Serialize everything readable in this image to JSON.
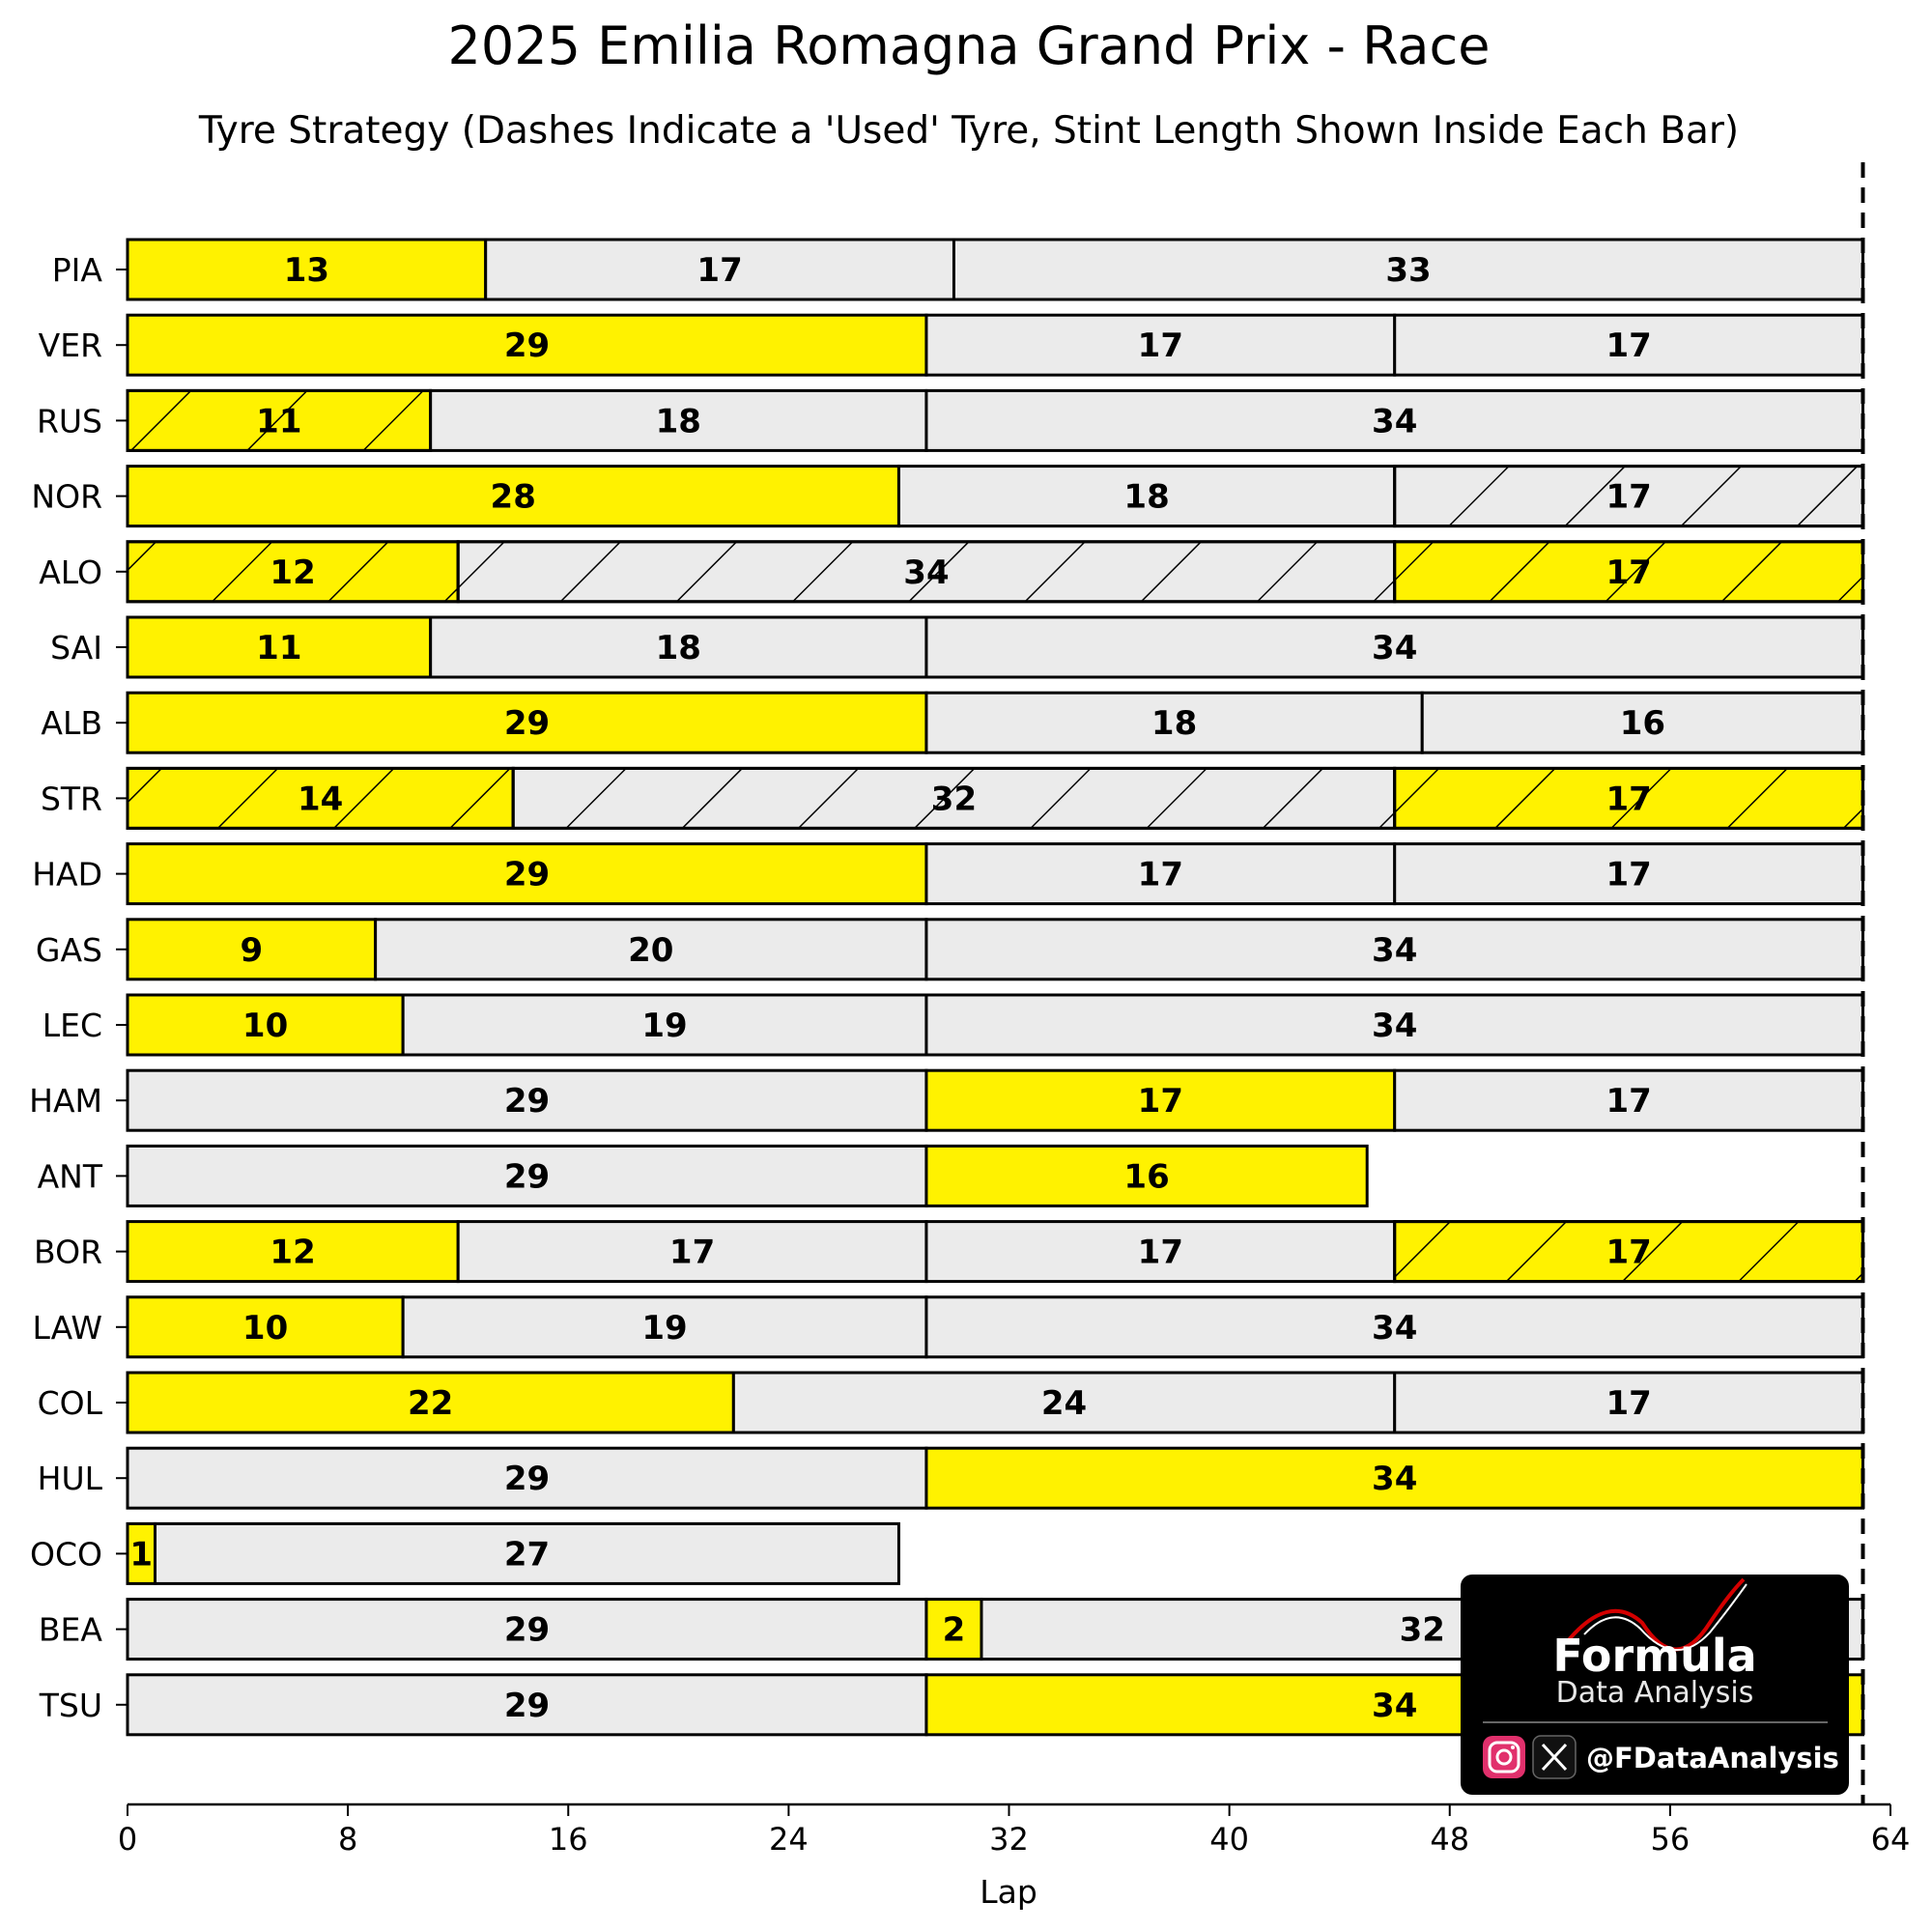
{
  "chart_data": {
    "type": "bar",
    "orientation": "horizontal-stacked",
    "title": "2025 Emilia Romagna Grand Prix - Race",
    "subtitle": "Tyre Strategy (Dashes Indicate a 'Used' Tyre, Stint Length Shown Inside Each Bar)",
    "xlabel": "Lap",
    "xlim": [
      0,
      64
    ],
    "xticks": [
      0,
      8,
      16,
      24,
      32,
      40,
      48,
      56,
      64
    ],
    "race_end_lap": 63,
    "colors": {
      "medium": "#fff200",
      "hard": "#ebebeb",
      "edge": "#000000"
    },
    "drivers": [
      {
        "code": "PIA",
        "stints": [
          {
            "compound": "medium",
            "laps": 13,
            "used": false
          },
          {
            "compound": "hard",
            "laps": 17,
            "used": false
          },
          {
            "compound": "hard",
            "laps": 33,
            "used": false
          }
        ]
      },
      {
        "code": "VER",
        "stints": [
          {
            "compound": "medium",
            "laps": 29,
            "used": false
          },
          {
            "compound": "hard",
            "laps": 17,
            "used": false
          },
          {
            "compound": "hard",
            "laps": 17,
            "used": false
          }
        ]
      },
      {
        "code": "RUS",
        "stints": [
          {
            "compound": "medium",
            "laps": 11,
            "used": true
          },
          {
            "compound": "hard",
            "laps": 18,
            "used": false
          },
          {
            "compound": "hard",
            "laps": 34,
            "used": false
          }
        ]
      },
      {
        "code": "NOR",
        "stints": [
          {
            "compound": "medium",
            "laps": 28,
            "used": false
          },
          {
            "compound": "hard",
            "laps": 18,
            "used": false
          },
          {
            "compound": "hard",
            "laps": 17,
            "used": true
          }
        ]
      },
      {
        "code": "ALO",
        "stints": [
          {
            "compound": "medium",
            "laps": 12,
            "used": true
          },
          {
            "compound": "hard",
            "laps": 34,
            "used": true
          },
          {
            "compound": "medium",
            "laps": 17,
            "used": true
          }
        ]
      },
      {
        "code": "SAI",
        "stints": [
          {
            "compound": "medium",
            "laps": 11,
            "used": false
          },
          {
            "compound": "hard",
            "laps": 18,
            "used": false
          },
          {
            "compound": "hard",
            "laps": 34,
            "used": false
          }
        ]
      },
      {
        "code": "ALB",
        "stints": [
          {
            "compound": "medium",
            "laps": 29,
            "used": false
          },
          {
            "compound": "hard",
            "laps": 18,
            "used": false
          },
          {
            "compound": "hard",
            "laps": 16,
            "used": false
          }
        ]
      },
      {
        "code": "STR",
        "stints": [
          {
            "compound": "medium",
            "laps": 14,
            "used": true
          },
          {
            "compound": "hard",
            "laps": 32,
            "used": true
          },
          {
            "compound": "medium",
            "laps": 17,
            "used": true
          }
        ]
      },
      {
        "code": "HAD",
        "stints": [
          {
            "compound": "medium",
            "laps": 29,
            "used": false
          },
          {
            "compound": "hard",
            "laps": 17,
            "used": false
          },
          {
            "compound": "hard",
            "laps": 17,
            "used": false
          }
        ]
      },
      {
        "code": "GAS",
        "stints": [
          {
            "compound": "medium",
            "laps": 9,
            "used": false
          },
          {
            "compound": "hard",
            "laps": 20,
            "used": false
          },
          {
            "compound": "hard",
            "laps": 34,
            "used": false
          }
        ]
      },
      {
        "code": "LEC",
        "stints": [
          {
            "compound": "medium",
            "laps": 10,
            "used": false
          },
          {
            "compound": "hard",
            "laps": 19,
            "used": false
          },
          {
            "compound": "hard",
            "laps": 34,
            "used": false
          }
        ]
      },
      {
        "code": "HAM",
        "stints": [
          {
            "compound": "hard",
            "laps": 29,
            "used": false
          },
          {
            "compound": "medium",
            "laps": 17,
            "used": false
          },
          {
            "compound": "hard",
            "laps": 17,
            "used": false
          }
        ]
      },
      {
        "code": "ANT",
        "stints": [
          {
            "compound": "hard",
            "laps": 29,
            "used": false
          },
          {
            "compound": "medium",
            "laps": 16,
            "used": false
          }
        ]
      },
      {
        "code": "BOR",
        "stints": [
          {
            "compound": "medium",
            "laps": 12,
            "used": false
          },
          {
            "compound": "hard",
            "laps": 17,
            "used": false
          },
          {
            "compound": "hard",
            "laps": 17,
            "used": false
          },
          {
            "compound": "medium",
            "laps": 17,
            "used": true
          }
        ]
      },
      {
        "code": "LAW",
        "stints": [
          {
            "compound": "medium",
            "laps": 10,
            "used": false
          },
          {
            "compound": "hard",
            "laps": 19,
            "used": false
          },
          {
            "compound": "hard",
            "laps": 34,
            "used": false
          }
        ]
      },
      {
        "code": "COL",
        "stints": [
          {
            "compound": "medium",
            "laps": 22,
            "used": false
          },
          {
            "compound": "hard",
            "laps": 24,
            "used": false
          },
          {
            "compound": "hard",
            "laps": 17,
            "used": false
          }
        ]
      },
      {
        "code": "HUL",
        "stints": [
          {
            "compound": "hard",
            "laps": 29,
            "used": false
          },
          {
            "compound": "medium",
            "laps": 34,
            "used": false
          }
        ]
      },
      {
        "code": "OCO",
        "stints": [
          {
            "compound": "medium",
            "laps": 1,
            "used": false
          },
          {
            "compound": "hard",
            "laps": 27,
            "used": false
          }
        ]
      },
      {
        "code": "BEA",
        "stints": [
          {
            "compound": "hard",
            "laps": 29,
            "used": false
          },
          {
            "compound": "medium",
            "laps": 2,
            "used": false
          },
          {
            "compound": "hard",
            "laps": 32,
            "used": false
          }
        ]
      },
      {
        "code": "TSU",
        "stints": [
          {
            "compound": "hard",
            "laps": 29,
            "used": false
          },
          {
            "compound": "medium",
            "laps": 34,
            "used": false
          }
        ]
      }
    ]
  },
  "watermark": {
    "brand_line1": "Formula",
    "brand_line2": "Data Analysis",
    "handle": "@FDataAnalysis",
    "icons": [
      "instagram-icon",
      "x-icon"
    ]
  }
}
